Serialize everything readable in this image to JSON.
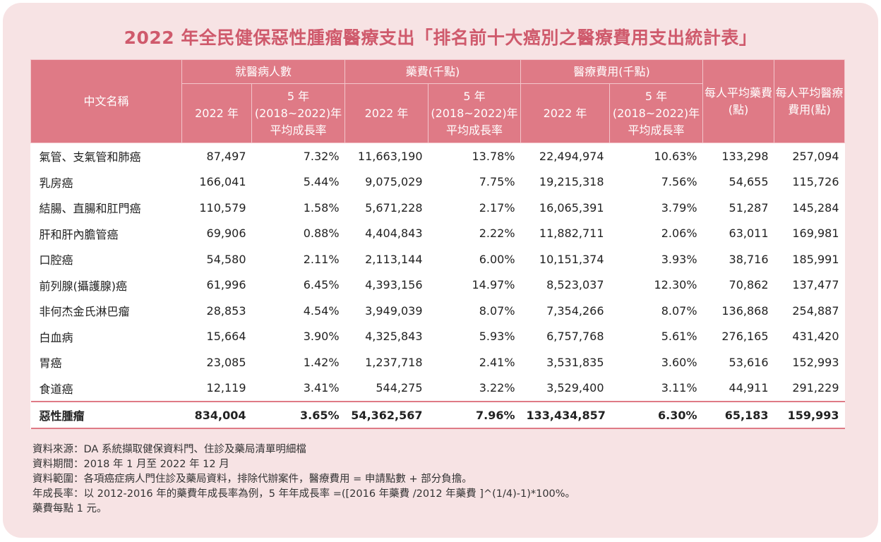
{
  "title": "2022 年全民健保惡性腫瘤醫療支出「排名前十大癌別之醫療費用支出統計表」",
  "headers": {
    "name": "中文名稱",
    "visits": "就醫病人數",
    "drug": "藥費(千點)",
    "medical": "醫療費用(千點)",
    "avg_drug": "每人平均藥費(點)",
    "avg_medical": "每人平均醫療費用(點)",
    "year_2022": "2022 年",
    "growth": "5 年(2018~2022)年平均成長率"
  },
  "rows": [
    {
      "name": "氣管、支氣管和肺癌",
      "patients": "87,497",
      "patients_growth": "7.32%",
      "drug": "11,663,190",
      "drug_growth": "13.78%",
      "medical": "22,494,974",
      "medical_growth": "10.63%",
      "avg_drug": "133,298",
      "avg_medical": "257,094"
    },
    {
      "name": "乳房癌",
      "patients": "166,041",
      "patients_growth": "5.44%",
      "drug": "9,075,029",
      "drug_growth": "7.75%",
      "medical": "19,215,318",
      "medical_growth": "7.56%",
      "avg_drug": "54,655",
      "avg_medical": "115,726"
    },
    {
      "name": "結腸、直腸和肛門癌",
      "patients": "110,579",
      "patients_growth": "1.58%",
      "drug": "5,671,228",
      "drug_growth": "2.17%",
      "medical": "16,065,391",
      "medical_growth": "3.79%",
      "avg_drug": "51,287",
      "avg_medical": "145,284"
    },
    {
      "name": "肝和肝內膽管癌",
      "patients": "69,906",
      "patients_growth": "0.88%",
      "drug": "4,404,843",
      "drug_growth": "2.22%",
      "medical": "11,882,711",
      "medical_growth": "2.06%",
      "avg_drug": "63,011",
      "avg_medical": "169,981"
    },
    {
      "name": "口腔癌",
      "patients": "54,580",
      "patients_growth": "2.11%",
      "drug": "2,113,144",
      "drug_growth": "6.00%",
      "medical": "10,151,374",
      "medical_growth": "3.93%",
      "avg_drug": "38,716",
      "avg_medical": "185,991"
    },
    {
      "name": "前列腺(攝護腺)癌",
      "patients": "61,996",
      "patients_growth": "6.45%",
      "drug": "4,393,156",
      "drug_growth": "14.97%",
      "medical": "8,523,037",
      "medical_growth": "12.30%",
      "avg_drug": "70,862",
      "avg_medical": "137,477"
    },
    {
      "name": "非何杰金氏淋巴瘤",
      "patients": "28,853",
      "patients_growth": "4.54%",
      "drug": "3,949,039",
      "drug_growth": "8.07%",
      "medical": "7,354,266",
      "medical_growth": "8.07%",
      "avg_drug": "136,868",
      "avg_medical": "254,887"
    },
    {
      "name": "白血病",
      "patients": "15,664",
      "patients_growth": "3.90%",
      "drug": "4,325,843",
      "drug_growth": "5.93%",
      "medical": "6,757,768",
      "medical_growth": "5.61%",
      "avg_drug": "276,165",
      "avg_medical": "431,420"
    },
    {
      "name": "胃癌",
      "patients": "23,085",
      "patients_growth": "1.42%",
      "drug": "1,237,718",
      "drug_growth": "2.41%",
      "medical": "3,531,835",
      "medical_growth": "3.60%",
      "avg_drug": "53,616",
      "avg_medical": "152,993"
    },
    {
      "name": "食道癌",
      "patients": "12,119",
      "patients_growth": "3.41%",
      "drug": "544,275",
      "drug_growth": "3.22%",
      "medical": "3,529,400",
      "medical_growth": "3.11%",
      "avg_drug": "44,911",
      "avg_medical": "291,229"
    }
  ],
  "total": {
    "name": "惡性腫瘤",
    "patients": "834,004",
    "patients_growth": "3.65%",
    "drug": "54,362,567",
    "drug_growth": "7.96%",
    "medical": "133,434,857",
    "medical_growth": "6.30%",
    "avg_drug": "65,183",
    "avg_medical": "159,993"
  },
  "notes": [
    "資料來源：DA 系統擷取健保資料門、住診及藥局清單明細檔",
    "資料期間：2018 年 1 月至 2022 年 12 月",
    "資料範圍：各項癌症病人門住診及藥局資料，排除代辦案件，醫療費用 = 申請點數 + 部分負擔。",
    "年成長率：以 2012-2016 年的藥費年成長率為例，5 年年成長率 =([2016 年藥費 /2012 年藥費 ]^(1/4)-1)*100%。",
    "藥費每點 1 元。"
  ]
}
